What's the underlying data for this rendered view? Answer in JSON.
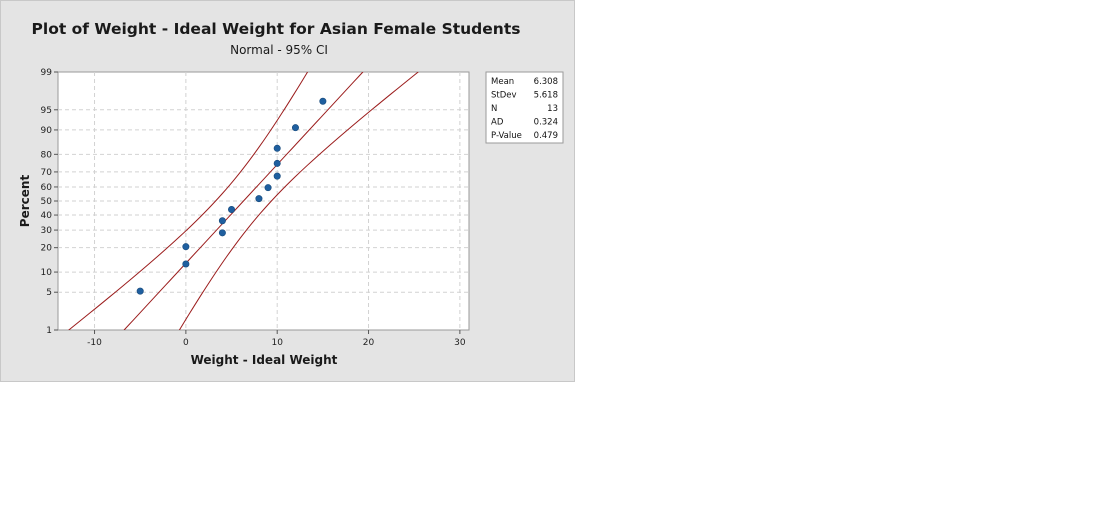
{
  "chart_data": {
    "type": "scatter",
    "title": "Plot of Weight - Ideal Weight for Asian Female Students",
    "subtitle": "Normal - 95% CI",
    "xlabel": "Weight - Ideal Weight",
    "ylabel": "Percent",
    "xlim": [
      -14,
      31
    ],
    "x_ticks": [
      -10,
      0,
      10,
      20,
      30
    ],
    "y_scale": "normal-probability",
    "y_ticks": [
      1,
      5,
      10,
      20,
      30,
      40,
      50,
      60,
      70,
      80,
      90,
      95,
      99
    ],
    "grid": true,
    "legend_position": "right",
    "points": [
      {
        "x": -5,
        "y": 5.2
      },
      {
        "x": 0,
        "y": 12.8
      },
      {
        "x": 0,
        "y": 20.5
      },
      {
        "x": 4,
        "y": 28.3
      },
      {
        "x": 4,
        "y": 36.1
      },
      {
        "x": 5,
        "y": 43.9
      },
      {
        "x": 8,
        "y": 51.7
      },
      {
        "x": 9,
        "y": 59.5
      },
      {
        "x": 10,
        "y": 67.3
      },
      {
        "x": 10,
        "y": 75.1
      },
      {
        "x": 10,
        "y": 82.9
      },
      {
        "x": 12,
        "y": 90.7
      },
      {
        "x": 15,
        "y": 96.4
      }
    ],
    "stats": [
      {
        "label": "Mean",
        "value": "6.308"
      },
      {
        "label": "StDev",
        "value": "5.618"
      },
      {
        "label": "N",
        "value": "13"
      },
      {
        "label": "AD",
        "value": "0.324"
      },
      {
        "label": "P-Value",
        "value": "0.479"
      }
    ],
    "colors": {
      "panel": "#e4e4e4",
      "plot_area": "#ffffff",
      "grid": "#d2d2d2",
      "points": "#1f5f9f",
      "fit_lines": "#9b1c1c"
    }
  }
}
